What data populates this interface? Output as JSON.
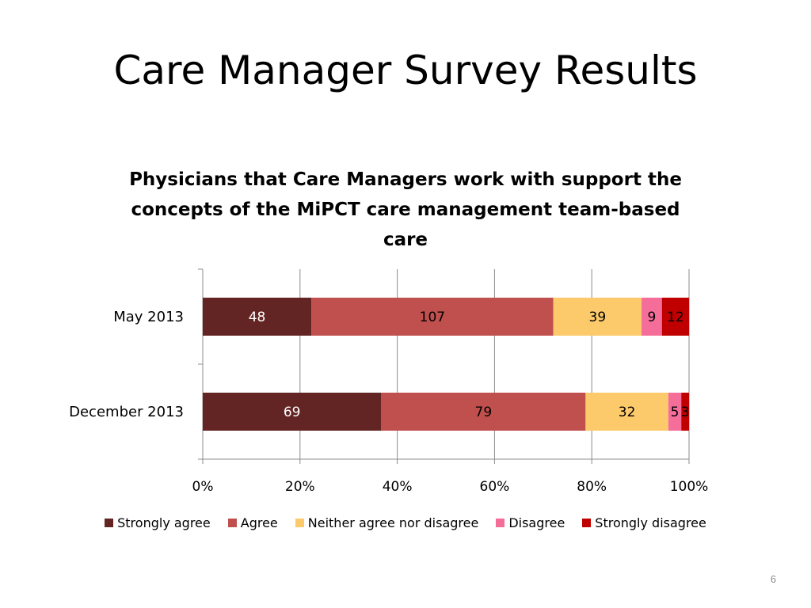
{
  "slide": {
    "title": "Care Manager Survey Results",
    "page_number": "6"
  },
  "chart_data": {
    "type": "bar",
    "orientation": "horizontal",
    "stacked": "percent",
    "title": "Physicians that Care Managers work with support the concepts of the MiPCT care management team-based care",
    "categories": [
      "May 2013",
      "December 2013"
    ],
    "series": [
      {
        "name": "Strongly agree",
        "values": [
          48,
          69
        ],
        "color": "#632523"
      },
      {
        "name": "Agree",
        "values": [
          107,
          79
        ],
        "color": "#c0504d"
      },
      {
        "name": "Neither agree nor disagree",
        "values": [
          39,
          32
        ],
        "color": "#fcc96b"
      },
      {
        "name": "Disagree",
        "values": [
          9,
          5
        ],
        "color": "#f56e9a"
      },
      {
        "name": "Strongly disagree",
        "values": [
          12,
          3
        ],
        "color": "#c00000"
      }
    ],
    "label_colors": [
      "#ffffff",
      "#000000",
      "#000000",
      "#000000",
      "#000000"
    ],
    "xticks": [
      "0%",
      "20%",
      "40%",
      "60%",
      "80%",
      "100%"
    ],
    "xlim": [
      0,
      100
    ],
    "grid": true,
    "legend": "bottom"
  }
}
